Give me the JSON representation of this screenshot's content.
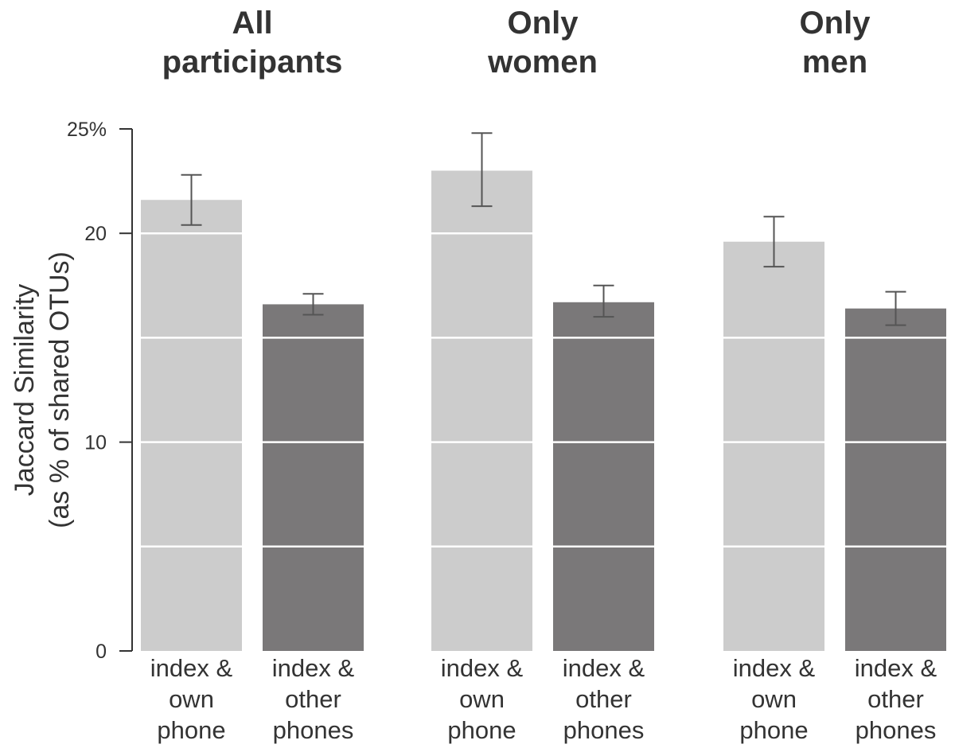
{
  "chart_data": {
    "type": "bar",
    "ylabel_lines": [
      "Jaccard Similarity",
      "(as % of shared OTUs)"
    ],
    "ylim": [
      0,
      25
    ],
    "yticks": [
      {
        "value": 0,
        "label": "0"
      },
      {
        "value": 10,
        "label": "10"
      },
      {
        "value": 20,
        "label": "20"
      },
      {
        "value": 25,
        "label": "25%"
      }
    ],
    "gridlines": [
      5,
      10,
      15,
      20
    ],
    "colors": {
      "own": "#cccccc",
      "other": "#7a7879",
      "error": "#555555",
      "grid": "#ffffff",
      "axis": "#333333"
    },
    "groups": [
      {
        "title_lines": [
          "All",
          "participants"
        ],
        "bars": [
          {
            "label_lines": [
              "index &",
              "own",
              "phone"
            ],
            "value": 21.6,
            "err_low": 20.4,
            "err_high": 22.8,
            "color_key": "own"
          },
          {
            "label_lines": [
              "index &",
              "other",
              "phones"
            ],
            "value": 16.6,
            "err_low": 16.1,
            "err_high": 17.1,
            "color_key": "other"
          }
        ]
      },
      {
        "title_lines": [
          "Only",
          "women"
        ],
        "bars": [
          {
            "label_lines": [
              "index &",
              "own",
              "phone"
            ],
            "value": 23.0,
            "err_low": 21.3,
            "err_high": 24.8,
            "color_key": "own"
          },
          {
            "label_lines": [
              "index &",
              "other",
              "phones"
            ],
            "value": 16.7,
            "err_low": 16.0,
            "err_high": 17.5,
            "color_key": "other"
          }
        ]
      },
      {
        "title_lines": [
          "Only",
          "men"
        ],
        "bars": [
          {
            "label_lines": [
              "index &",
              "own",
              "phone"
            ],
            "value": 19.6,
            "err_low": 18.4,
            "err_high": 20.8,
            "color_key": "own"
          },
          {
            "label_lines": [
              "index &",
              "other",
              "phones"
            ],
            "value": 16.4,
            "err_low": 15.6,
            "err_high": 17.2,
            "color_key": "other"
          }
        ]
      }
    ]
  }
}
